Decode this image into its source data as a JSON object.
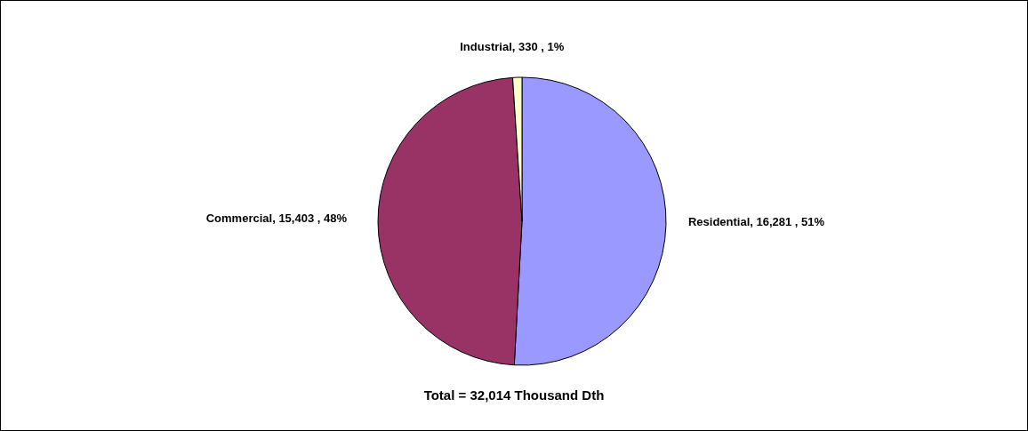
{
  "chart_data": {
    "type": "pie",
    "categories": [
      "Residential",
      "Commercial",
      "Industrial"
    ],
    "values": [
      16281,
      15403,
      330
    ],
    "colors": [
      "#9999ff",
      "#993366",
      "#ffffcc"
    ],
    "value_labels": [
      "16,281 , 51%",
      "15,403 , 48%",
      "330 , 1%"
    ],
    "annotations": [
      "Total = 32,014 Thousand Dth"
    ]
  }
}
